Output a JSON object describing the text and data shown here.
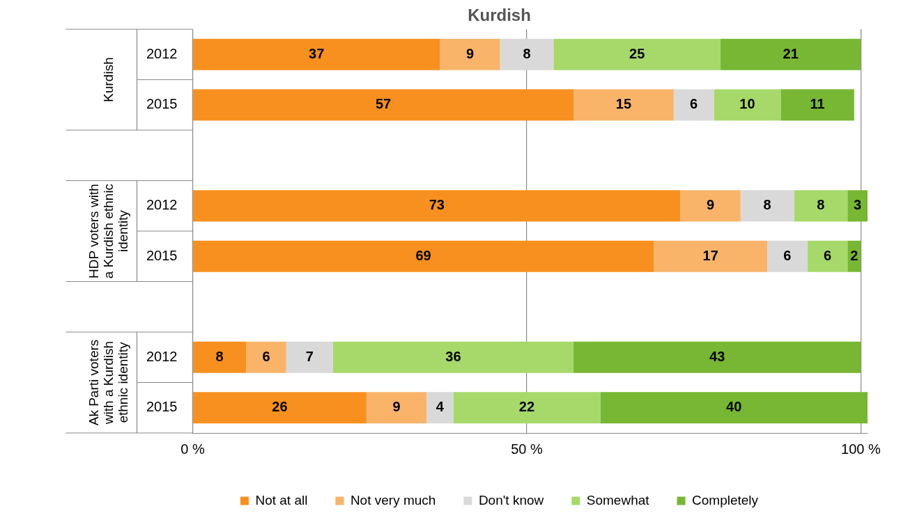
{
  "chart_data": {
    "type": "bar",
    "orientation": "horizontal",
    "stacked": true,
    "title": "Kurdish",
    "categories": [
      "2012",
      "2015",
      null,
      "2012",
      "2015",
      null,
      "2012",
      "2015"
    ],
    "series": [
      {
        "name": "Not at all",
        "color": "#f7901e",
        "values": [
          37,
          57,
          null,
          73,
          69,
          null,
          8,
          26
        ]
      },
      {
        "name": "Not very much",
        "color": "#f9b46a",
        "values": [
          9,
          15,
          null,
          9,
          17,
          null,
          6,
          9
        ]
      },
      {
        "name": "Don't know",
        "color": "#d9d9d9",
        "values": [
          8,
          6,
          null,
          8,
          6,
          null,
          7,
          4
        ]
      },
      {
        "name": "Somewhat",
        "color": "#a6d96a",
        "values": [
          25,
          10,
          null,
          8,
          6,
          null,
          36,
          22
        ]
      },
      {
        "name": "Completely",
        "color": "#77b733",
        "values": [
          21,
          11,
          null,
          3,
          2,
          null,
          43,
          40
        ]
      }
    ],
    "xlim": [
      0,
      101
    ],
    "xticks": [
      {
        "value": 0,
        "label": "0 %"
      },
      {
        "value": 50,
        "label": "50 %"
      },
      {
        "value": 100,
        "label": "100 %"
      }
    ],
    "grid": "x",
    "legend": "bottom",
    "data_labels": true,
    "annotations": [
      "Kurdish",
      "HDP voters with a Kurdish ethnic identity",
      "Ak Parti voters with a Kurdish ethnic identity"
    ]
  }
}
